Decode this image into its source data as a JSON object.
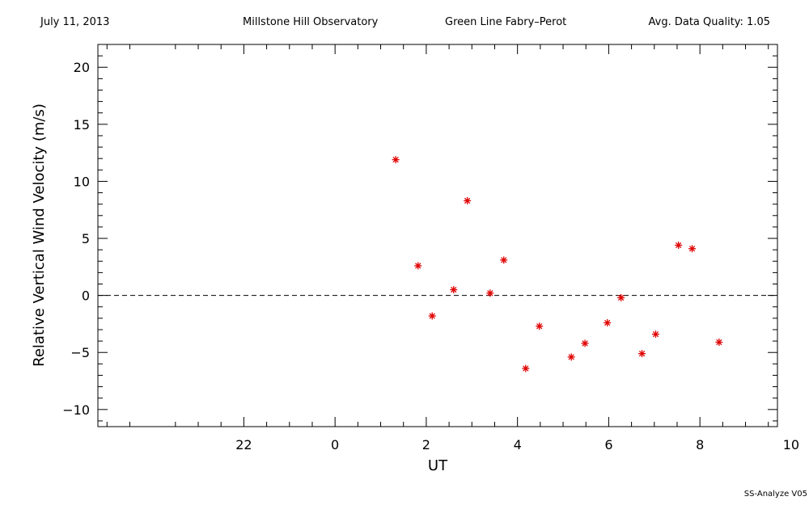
{
  "header": {
    "date": "July 11, 2013",
    "observatory": "Millstone Hill Observatory",
    "instrument": "Green Line Fabry–Perot",
    "quality": "Avg. Data Quality: 1.05"
  },
  "footer": {
    "version": "SS-Analyze V05"
  },
  "chart_data": {
    "type": "scatter",
    "title": "",
    "xlabel": "UT",
    "ylabel": "Relative Vertical Wind Velocity (m/s)",
    "xlim": [
      -5.2,
      9.7
    ],
    "ylim": [
      -11.5,
      22
    ],
    "x_ticks": [
      -2,
      0,
      2,
      4,
      6,
      8
    ],
    "x_tick_labels": [
      "22",
      "0",
      "2",
      "4",
      "6",
      "8",
      "10"
    ],
    "x_tick_values": [
      -2,
      0,
      2,
      4,
      6,
      8,
      10
    ],
    "y_ticks": [
      -10,
      -5,
      0,
      5,
      10,
      15,
      20
    ],
    "y_tick_labels": [
      "−10",
      "−5",
      "0",
      "5",
      "10",
      "15",
      "20"
    ],
    "reference_line": {
      "y": 0,
      "style": "dashed"
    },
    "grid": false,
    "marker_color": "#e00000",
    "series": [
      {
        "marker": "asterisk",
        "x": [
          1.33,
          1.82,
          2.13,
          2.6,
          2.9,
          3.4,
          3.7,
          4.18,
          4.48,
          5.18,
          5.48,
          5.97,
          6.27,
          6.73,
          7.03,
          7.53,
          7.83,
          8.42
        ],
        "y": [
          11.9,
          2.6,
          -1.8,
          0.5,
          8.3,
          0.2,
          3.1,
          -6.4,
          -2.7,
          -5.4,
          -4.2,
          -2.4,
          -0.2,
          -5.1,
          -3.4,
          4.4,
          4.1,
          -4.1
        ]
      }
    ]
  }
}
